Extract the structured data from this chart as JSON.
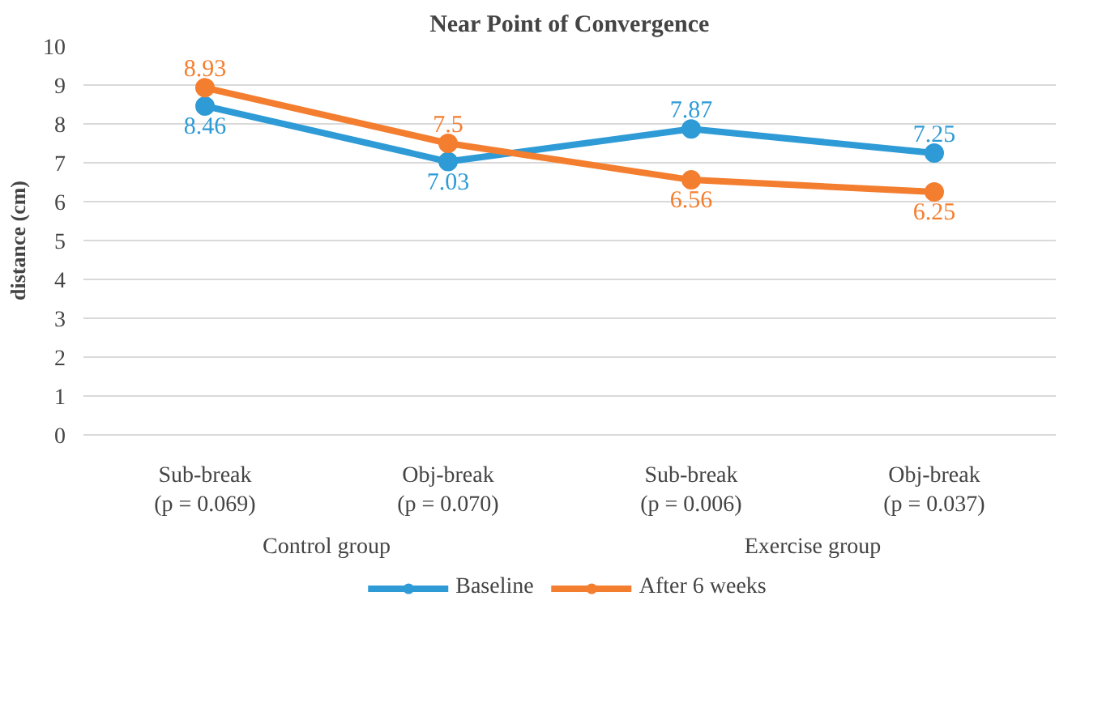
{
  "chart_data": {
    "type": "line",
    "title": "Near Point of Convergence",
    "ylabel": "distance (cm)",
    "categories": [
      "Sub-break\n(p = 0.069)",
      "Obj-break\n(p = 0.070)",
      "Sub-break\n(p = 0.006)",
      "Obj-break\n(p = 0.037)"
    ],
    "annotations": [
      "Control group",
      "Exercise group"
    ],
    "series": [
      {
        "name": "Baseline",
        "color": "#2e9bd6",
        "values": [
          8.46,
          7.03,
          7.87,
          7.25
        ]
      },
      {
        "name": "After 6 weeks",
        "color": "#f47e2f",
        "values": [
          8.93,
          7.5,
          6.56,
          6.25
        ]
      }
    ],
    "ylim": [
      0,
      10
    ],
    "yticks": [
      0,
      1,
      2,
      3,
      4,
      5,
      6,
      7,
      8,
      9,
      10
    ],
    "data_labels": true,
    "grid": "y",
    "legend": "bottom",
    "marker": "circle",
    "line_style": "solid"
  }
}
